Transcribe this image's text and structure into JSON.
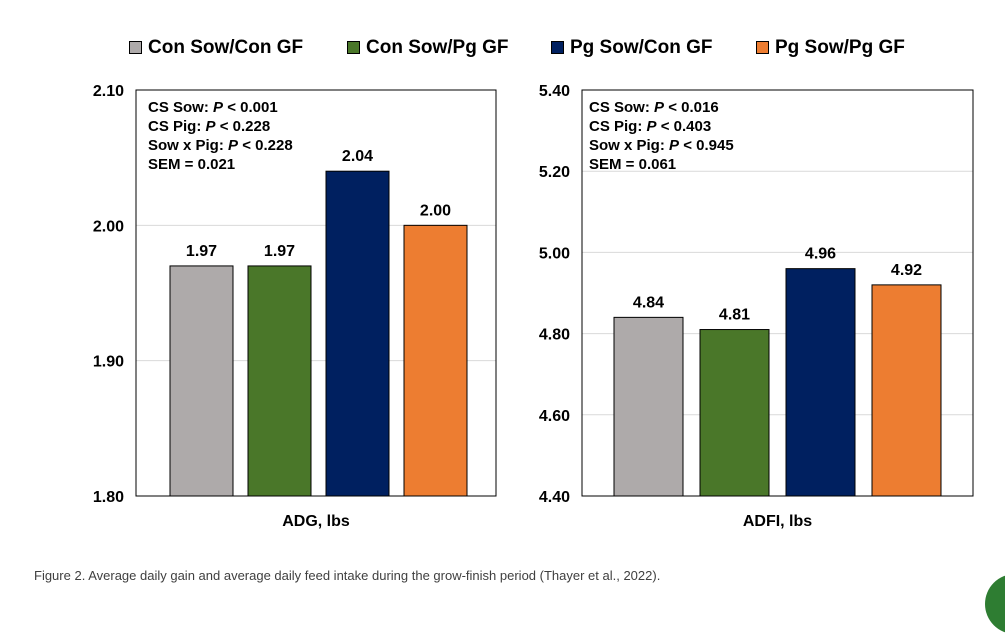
{
  "legend": [
    {
      "label": "Con Sow/Con GF",
      "color": "#aeaaaa"
    },
    {
      "label": "Con Sow/Pg GF",
      "color": "#4a7729"
    },
    {
      "label": "Pg Sow/Con GF",
      "color": "#002060"
    },
    {
      "label": "Pg Sow/Pg GF",
      "color": "#ed7d31"
    }
  ],
  "chart_data": [
    {
      "type": "bar",
      "xlabel": "ADG, lbs",
      "ylim": [
        1.8,
        2.1
      ],
      "yticks": [
        "1.80",
        "1.90",
        "2.00",
        "2.10"
      ],
      "grid": true,
      "categories": [
        "Con Sow/Con GF",
        "Con Sow/Pg GF",
        "Pg Sow/Con GF",
        "Pg Sow/Pg GF"
      ],
      "values": [
        1.97,
        1.97,
        2.04,
        2.0
      ],
      "value_labels": [
        "1.97",
        "1.97",
        "2.04",
        "2.00"
      ],
      "stats": [
        {
          "label": "CS Sow: ",
          "p": "P",
          "value": " < 0.001"
        },
        {
          "label": "CS Pig: ",
          "p": "P",
          "value": " < 0.228"
        },
        {
          "label": "Sow x Pig: ",
          "p": "P",
          "value": " < 0.228"
        },
        {
          "label": "SEM = 0.021",
          "p": "",
          "value": ""
        }
      ]
    },
    {
      "type": "bar",
      "xlabel": "ADFI, lbs",
      "ylim": [
        4.4,
        5.4
      ],
      "yticks": [
        "4.40",
        "4.60",
        "4.80",
        "5.00",
        "5.20",
        "5.40"
      ],
      "grid": true,
      "categories": [
        "Con Sow/Con GF",
        "Con Sow/Pg GF",
        "Pg Sow/Con GF",
        "Pg Sow/Pg GF"
      ],
      "values": [
        4.84,
        4.81,
        4.96,
        4.92
      ],
      "value_labels": [
        "4.84",
        "4.81",
        "4.96",
        "4.92"
      ],
      "stats": [
        {
          "label": "CS Sow: ",
          "p": "P",
          "value": " < 0.016"
        },
        {
          "label": "CS Pig: ",
          "p": "P",
          "value": " < 0.403"
        },
        {
          "label": "Sow x Pig: ",
          "p": "P",
          "value": " < 0.945"
        },
        {
          "label": "SEM = 0.061",
          "p": "",
          "value": ""
        }
      ]
    }
  ],
  "caption": "Figure 2. Average daily gain and average daily feed intake during the grow-finish period (Thayer et al., 2022)."
}
